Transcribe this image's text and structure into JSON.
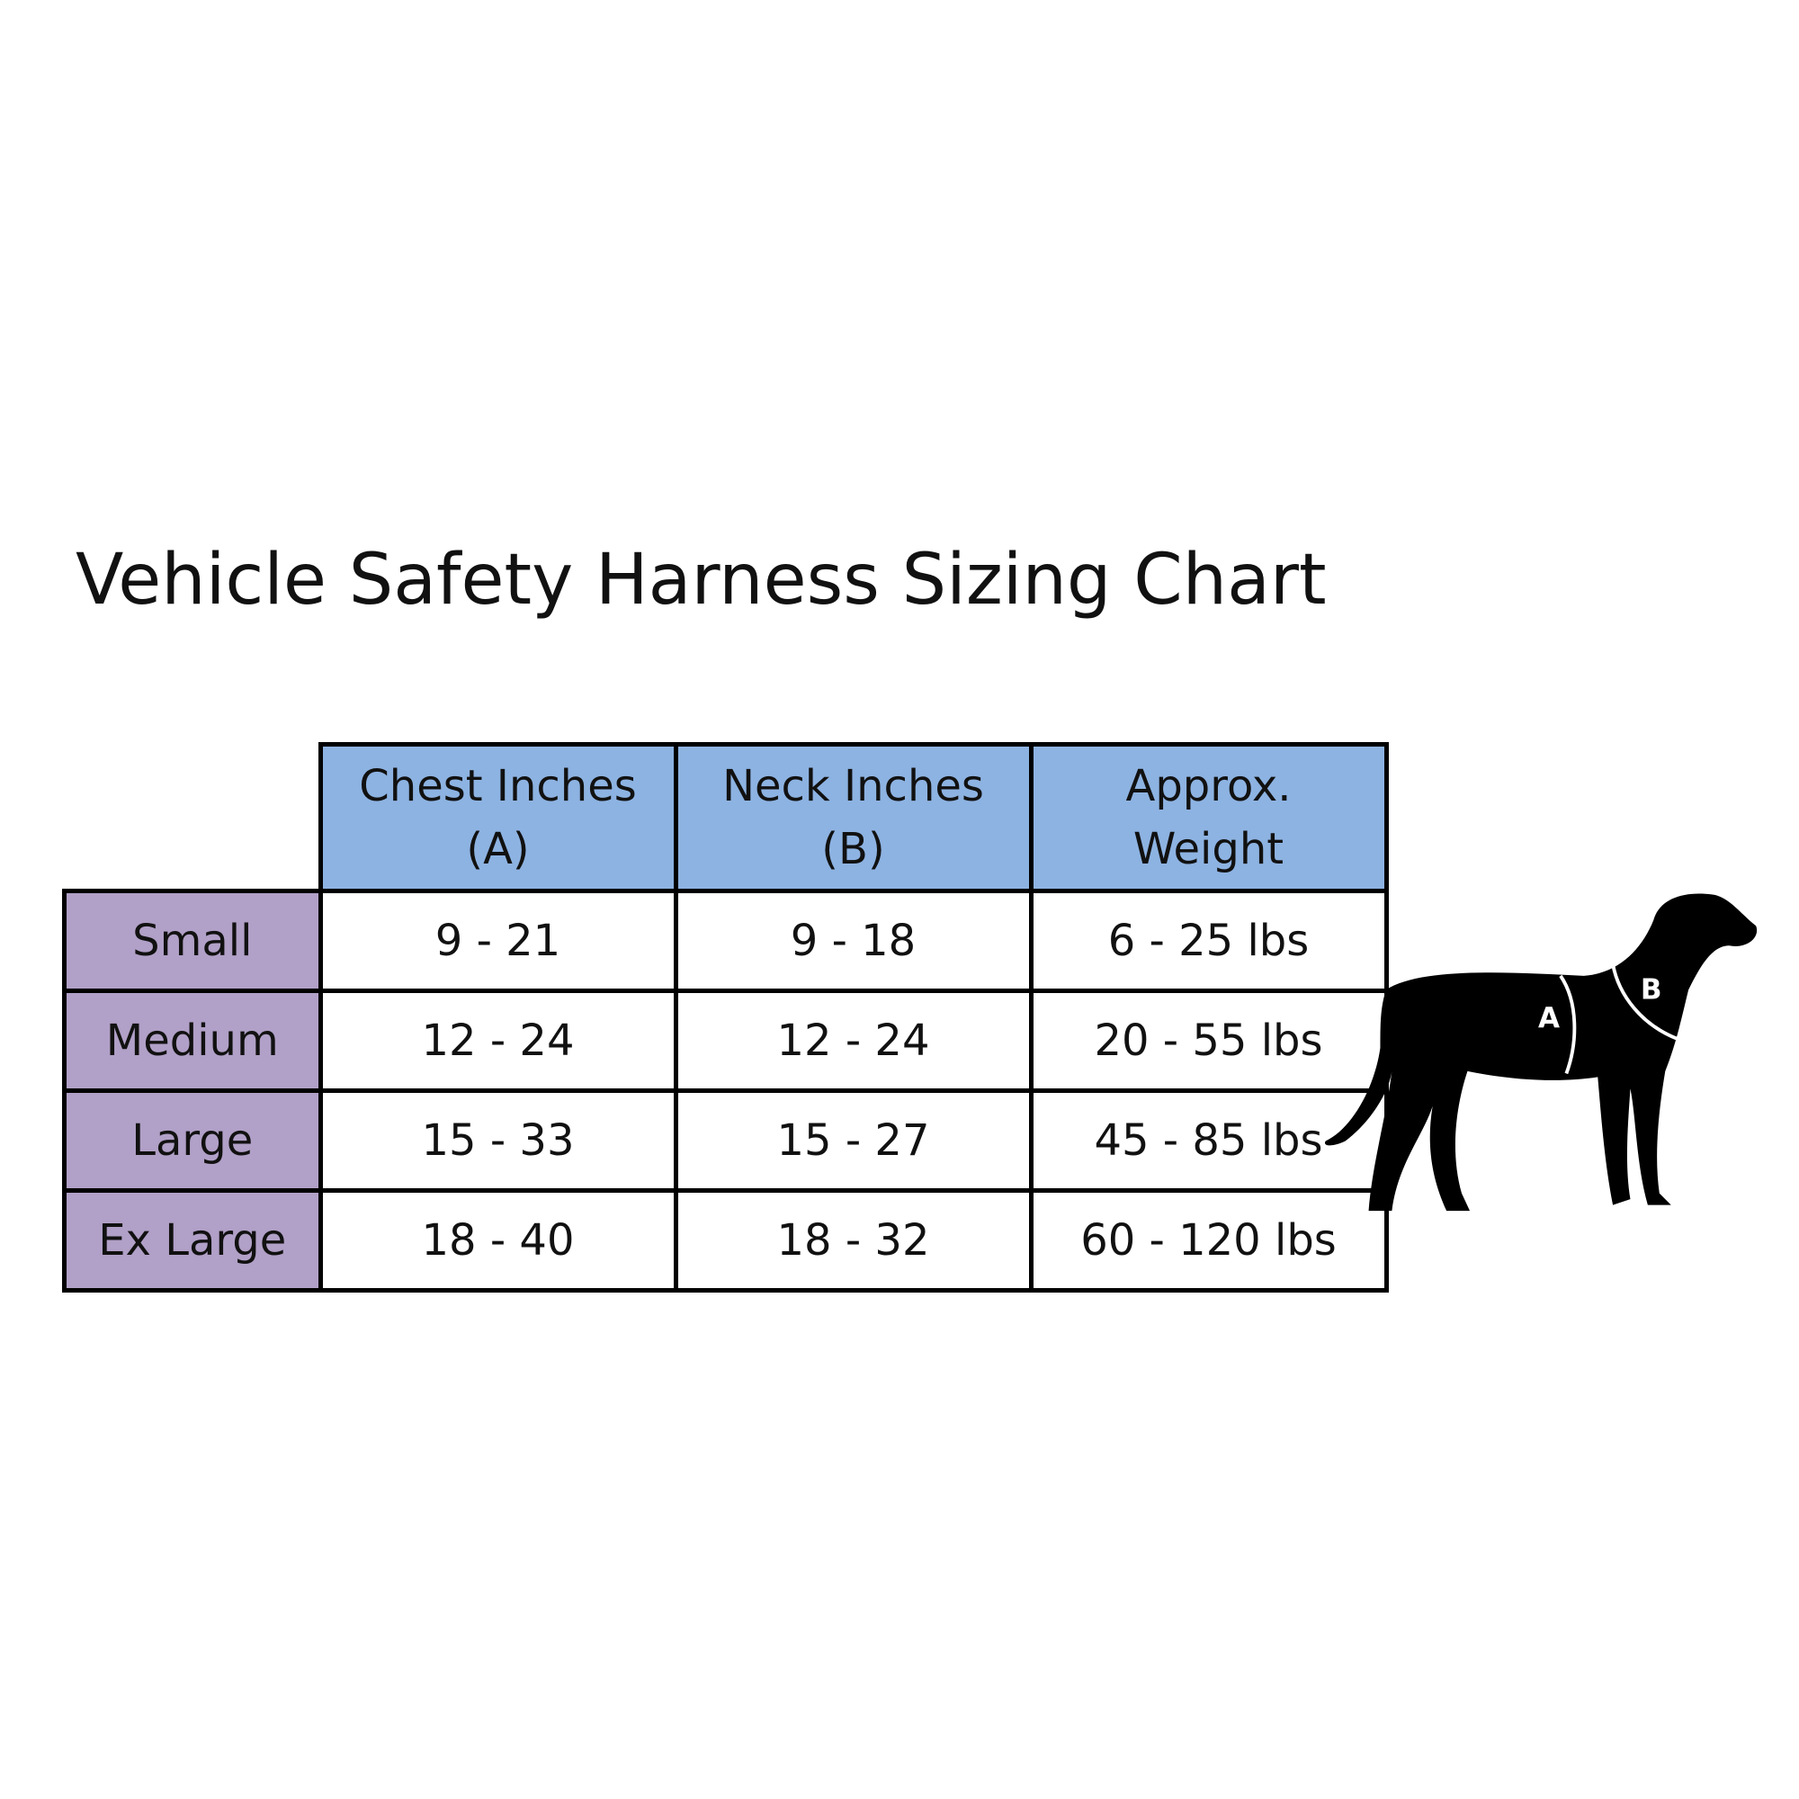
{
  "title": "Vehicle Safety Harness Sizing Chart",
  "table": {
    "columns": [
      "Chest Inches (A)",
      "Neck Inches (B)",
      "Approx. Weight"
    ],
    "rows": [
      [
        "Small",
        "9 - 21",
        "9 - 18",
        "6 - 25 lbs"
      ],
      [
        "Medium",
        "12 - 24",
        "12 - 24",
        "20 - 55 lbs"
      ],
      [
        "Large",
        "15 - 33",
        "15 - 27",
        "45 - 85 lbs"
      ],
      [
        "Ex Large",
        "18 - 40",
        "18 - 32",
        "60 - 120 lbs"
      ]
    ]
  },
  "dog": {
    "labels": [
      "A",
      "B"
    ]
  }
}
